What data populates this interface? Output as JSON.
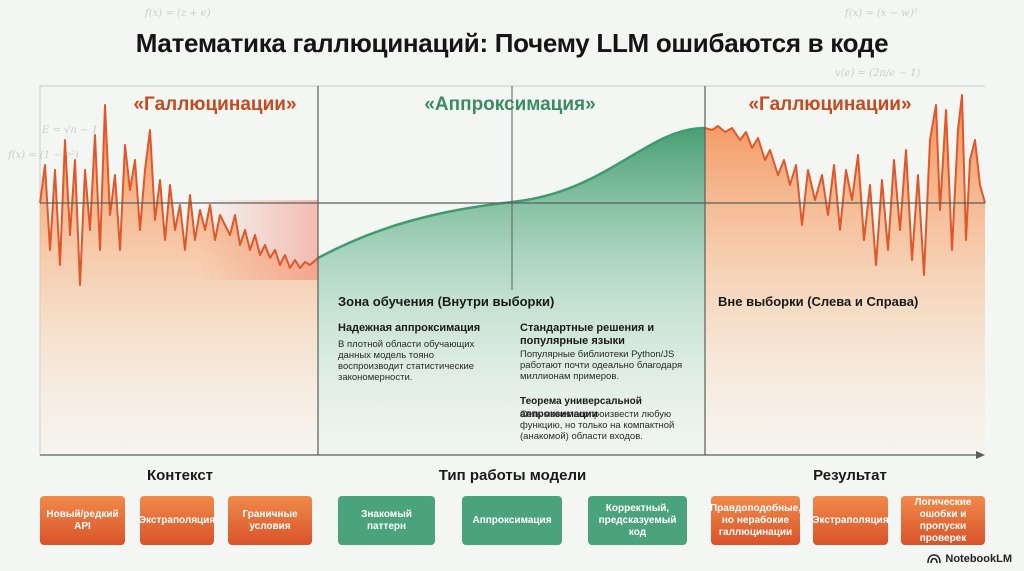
{
  "title": "Математика галлюцинаций: Почему LLM ошибаются в коде",
  "regions": {
    "left_label": "«Галлюцинации»",
    "center_label": "«Аппроксимация»",
    "right_label": "«Галлюцинации»"
  },
  "training_zone": {
    "heading": "Зона обучения (Внутри выборки)",
    "blocks": [
      {
        "title": "Надежная аппроксимация",
        "text": "В плотной области обучающих данных модель тояно воспроизводит статистические закономерности."
      },
      {
        "title": "Стандартные решения и популярные языки",
        "text": "Популярные библиотеки Python/JS работают почти одеально благодаря миллионам примеров."
      },
      {
        "title": "Теорема универсальной аппроксимации",
        "text": "Сеть может воспроизвести любую функцию, но только на компактной (анакомой) области входов."
      }
    ]
  },
  "outside_zone": {
    "heading": "Вне выборки (Слева и Справа)"
  },
  "bottom": {
    "headers": [
      "Контекст",
      "Тип работы модели",
      "Результат"
    ],
    "chips": [
      {
        "label": "Новый/редкий API",
        "color": "red"
      },
      {
        "label": "Экстраполяция",
        "color": "red"
      },
      {
        "label": "Граничные условия",
        "color": "red"
      },
      {
        "label": "Знакомый паттерн",
        "color": "green"
      },
      {
        "label": "Аппроксимация",
        "color": "green"
      },
      {
        "label": "Корректный, предсказуемый код",
        "color": "green"
      },
      {
        "label": "Правдоподобные, но нерабокие галлюцинации",
        "color": "red"
      },
      {
        "label": "Экстраполяция",
        "color": "red"
      },
      {
        "label": "Логические ошобки и пропуски проверек",
        "color": "red"
      }
    ]
  },
  "background_formulas": [
    "f(x) = (z + e)",
    "f(x) = (x − w)²",
    "v(e) = (2π/e − 1)",
    "E = √n − 1",
    "f(x) = (1 − e²)"
  ],
  "logo": "NotebookLM",
  "colors": {
    "hallucination": "#e4602a",
    "approximation": "#3f9a6e",
    "fill_red": "#f7b27c",
    "fill_green": "#5fae87"
  }
}
